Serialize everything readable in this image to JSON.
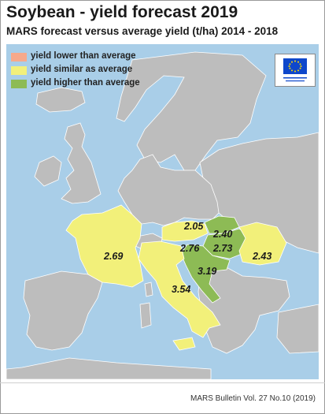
{
  "title": "Soybean - yield forecast 2019",
  "subtitle": "MARS forecast versus average yield (t/ha) 2014 - 2018",
  "legend": [
    {
      "label": "yield lower than average",
      "color": "#F7A98B"
    },
    {
      "label": "yield similar as average",
      "color": "#F2F07A"
    },
    {
      "label": "yield higher than average",
      "color": "#8DBB55"
    }
  ],
  "logo": {
    "label": "European Commission",
    "color": "#0E47CB"
  },
  "colors": {
    "sea": "#A9CEE8",
    "land": "#BDBDBD",
    "similar": "#F2F07A",
    "higher": "#8DBB55"
  },
  "regions": [
    {
      "name": "France",
      "value": "2.69",
      "category": "similar"
    },
    {
      "name": "Austria",
      "value": "2.05",
      "category": "similar"
    },
    {
      "name": "Slovakia",
      "value": "2.40",
      "category": "higher"
    },
    {
      "name": "Hungary",
      "value": "2.73",
      "category": "higher"
    },
    {
      "name": "Romania",
      "value": "2.43",
      "category": "similar"
    },
    {
      "name": "Italy north",
      "value": "2.76",
      "category": "similar"
    },
    {
      "name": "Croatia",
      "value": "3.19",
      "category": "higher"
    },
    {
      "name": "Italy",
      "value": "3.54",
      "category": "similar"
    }
  ],
  "footer": "MARS Bulletin Vol. 27 No.10 (2019)"
}
